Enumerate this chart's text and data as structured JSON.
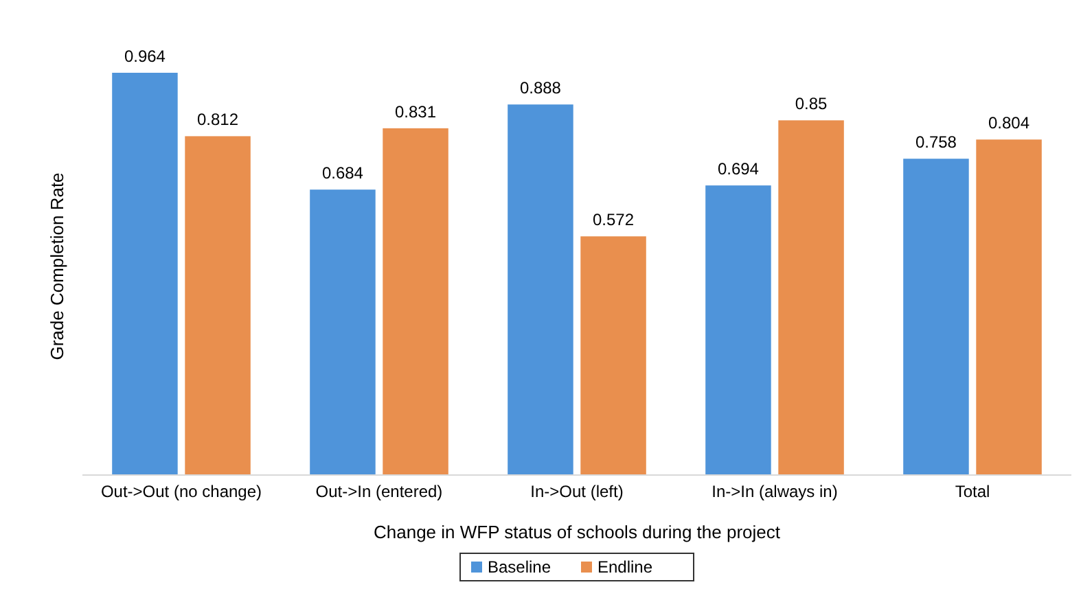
{
  "chart_data": {
    "type": "bar",
    "xlabel": "Change in WFP status of schools during the project",
    "ylabel": "Grade Completion Rate",
    "categories": [
      "Out->Out (no change)",
      "Out->In (entered)",
      "In->Out (left)",
      "In->In (always in)",
      "Total"
    ],
    "series": [
      {
        "name": "Baseline",
        "color": "#4f94da",
        "values": [
          0.964,
          0.684,
          0.888,
          0.694,
          0.758
        ]
      },
      {
        "name": "Endline",
        "color": "#e98f4e",
        "values": [
          0.812,
          0.831,
          0.572,
          0.85,
          0.804
        ]
      }
    ],
    "data_labels": true,
    "legend": "bottom"
  }
}
